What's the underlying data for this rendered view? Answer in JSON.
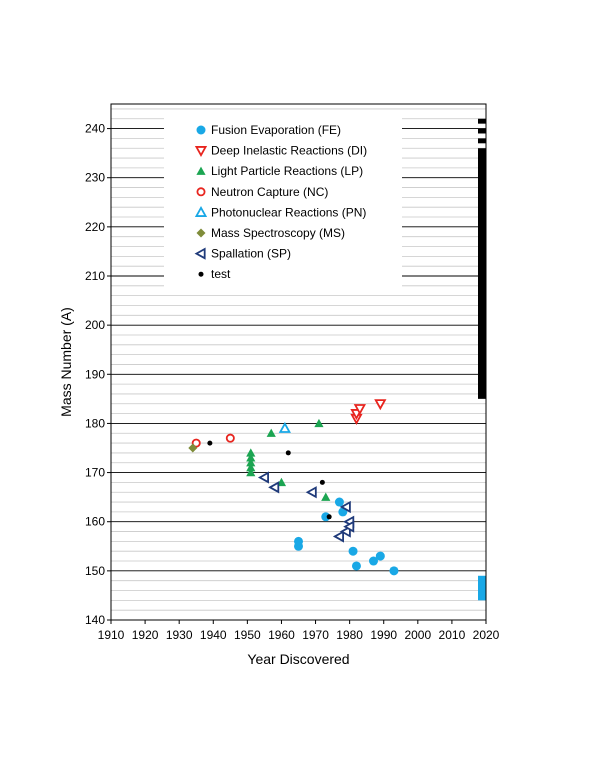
{
  "chart_data": {
    "type": "scatter",
    "title": "",
    "xlabel": "Year Discovered",
    "ylabel": "Mass Number (A)",
    "xlim": [
      1910,
      2020
    ],
    "ylim": [
      140,
      245
    ],
    "xticks": [
      1910,
      1920,
      1930,
      1940,
      1950,
      1960,
      1970,
      1980,
      1990,
      2000,
      2010,
      2020
    ],
    "yticks": [
      140,
      150,
      160,
      170,
      180,
      190,
      200,
      210,
      220,
      230,
      240
    ],
    "grid": "horizontal",
    "legend_position": "top-left",
    "series": [
      {
        "name": "Fusion Evaporation (FE)",
        "marker": "circle",
        "filled": true,
        "color": "#19a8e6",
        "points": [
          [
            1965,
            156
          ],
          [
            1965,
            155
          ],
          [
            1973,
            161
          ],
          [
            1977,
            164
          ],
          [
            1978,
            162
          ],
          [
            1981,
            154
          ],
          [
            1982,
            151
          ],
          [
            1987,
            152
          ],
          [
            1989,
            153
          ],
          [
            1993,
            150
          ]
        ]
      },
      {
        "name": "Deep Inelastic Reactions (DI)",
        "marker": "triangle-down",
        "filled": false,
        "color": "#e8251f",
        "points": [
          [
            1982,
            181
          ],
          [
            1982,
            182
          ],
          [
            1983,
            183
          ],
          [
            1989,
            184
          ]
        ]
      },
      {
        "name": "Light Particle Reactions (LP)",
        "marker": "triangle-up",
        "filled": true,
        "color": "#1ca552",
        "points": [
          [
            1951,
            174
          ],
          [
            1951,
            173
          ],
          [
            1951,
            172
          ],
          [
            1951,
            171
          ],
          [
            1951,
            170
          ],
          [
            1957,
            178
          ],
          [
            1960,
            168
          ],
          [
            1971,
            180
          ],
          [
            1973,
            165
          ]
        ]
      },
      {
        "name": "Neutron Capture (NC)",
        "marker": "circle",
        "filled": false,
        "color": "#e8251f",
        "points": [
          [
            1935,
            176
          ],
          [
            1945,
            177
          ]
        ]
      },
      {
        "name": "Photonuclear Reactions (PN)",
        "marker": "triangle-up",
        "filled": false,
        "color": "#19a8e6",
        "points": [
          [
            1961,
            179
          ]
        ]
      },
      {
        "name": "Mass Spectroscopy (MS)",
        "marker": "diamond",
        "filled": true,
        "color": "#7f8c3a",
        "points": [
          [
            1934,
            175
          ]
        ]
      },
      {
        "name": "Spallation (SP)",
        "marker": "triangle-left",
        "filled": false,
        "color": "#1f3a7a",
        "points": [
          [
            1955,
            169
          ],
          [
            1958,
            167
          ],
          [
            1969,
            166
          ],
          [
            1977,
            157
          ],
          [
            1979,
            163
          ],
          [
            1979,
            158
          ],
          [
            1980,
            160
          ],
          [
            1980,
            159
          ]
        ]
      },
      {
        "name": "test",
        "marker": "circle",
        "filled": true,
        "color": "#000000",
        "small": true,
        "points": [
          [
            1939,
            176
          ],
          [
            1962,
            174
          ],
          [
            1972,
            168
          ],
          [
            1974,
            161
          ]
        ]
      }
    ],
    "undiscovered_bars": [
      {
        "color": "#000000",
        "ranges": [
          [
            185,
            236
          ],
          [
            237,
            238
          ],
          [
            239,
            240
          ],
          [
            241,
            242
          ]
        ]
      },
      {
        "color": "#19a8e6",
        "ranges": [
          [
            144,
            149
          ]
        ]
      }
    ]
  }
}
